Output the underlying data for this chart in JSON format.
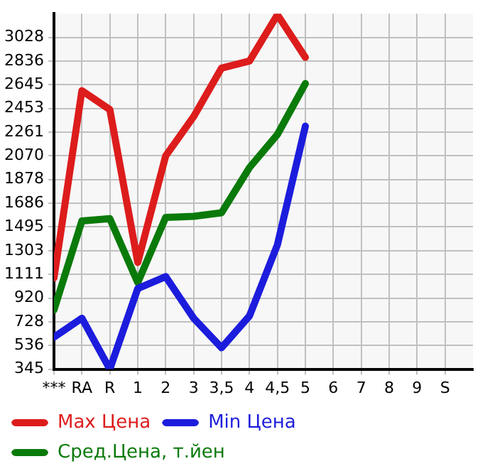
{
  "chart_data": {
    "type": "line",
    "categories": [
      "***",
      "RA",
      "R",
      "1",
      "2",
      "3",
      "3,5",
      "4",
      "4,5",
      "5",
      "6",
      "7",
      "8",
      "9",
      "S"
    ],
    "series": [
      {
        "name": "Max Цена",
        "color": "#dd1c1c",
        "values": [
          1083,
          2597,
          2444,
          1208,
          2070,
          2387,
          2780,
          2837,
          3211,
          2866,
          null,
          null,
          null,
          null,
          null
        ]
      },
      {
        "name": "Min Цена",
        "color": "#1c1cdd",
        "values": [
          604,
          757,
          345,
          997,
          1093,
          757,
          518,
          776,
          1351,
          2310,
          null,
          null,
          null,
          null,
          null
        ]
      },
      {
        "name": "Сред.Цена, т.йен",
        "color": "#0a7a0a",
        "values": [
          824,
          1543,
          1562,
          1045,
          1572,
          1581,
          1610,
          1975,
          2243,
          2655,
          null,
          null,
          null,
          null,
          null
        ]
      }
    ],
    "ylim": [
      345,
      3220
    ],
    "yticks": [
      345,
      536,
      728,
      920,
      1111,
      1303,
      1495,
      1686,
      1878,
      2070,
      2261,
      2453,
      2645,
      2836,
      3028
    ],
    "grid": true,
    "legend": "bottom",
    "marker": "none",
    "line_style": "solid"
  }
}
